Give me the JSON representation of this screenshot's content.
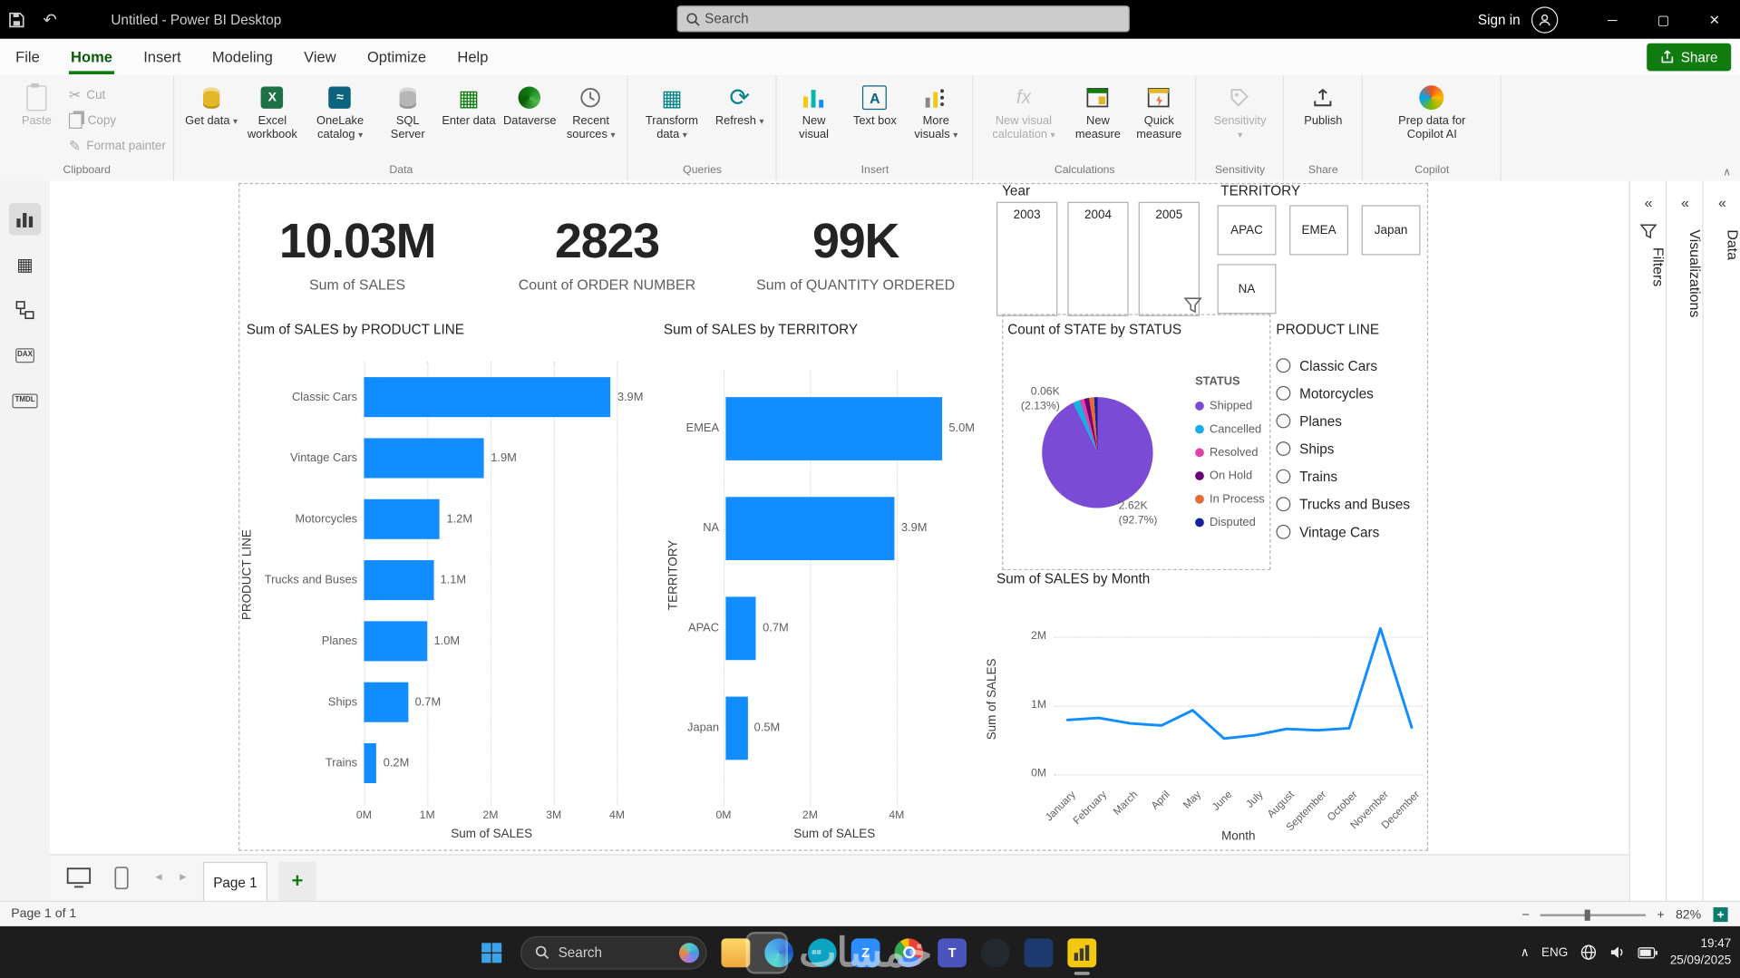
{
  "titlebar": {
    "title": "Untitled - Power BI Desktop",
    "search_placeholder": "Search",
    "sign_in_label": "Sign in"
  },
  "menu": {
    "items": [
      "File",
      "Home",
      "Insert",
      "Modeling",
      "View",
      "Optimize",
      "Help"
    ],
    "active": "Home",
    "share_label": "Share"
  },
  "ribbon": {
    "groups": [
      {
        "label": "Clipboard",
        "buttons": [
          {
            "label": "Paste"
          },
          {
            "label": "Cut"
          },
          {
            "label": "Copy"
          },
          {
            "label": "Format painter"
          }
        ]
      },
      {
        "label": "Data",
        "buttons": [
          {
            "label": "Get data"
          },
          {
            "label": "Excel workbook"
          },
          {
            "label": "OneLake catalog"
          },
          {
            "label": "SQL Server"
          },
          {
            "label": "Enter data"
          },
          {
            "label": "Dataverse"
          },
          {
            "label": "Recent sources"
          }
        ]
      },
      {
        "label": "Queries",
        "buttons": [
          {
            "label": "Transform data"
          },
          {
            "label": "Refresh"
          }
        ]
      },
      {
        "label": "Insert",
        "buttons": [
          {
            "label": "New visual"
          },
          {
            "label": "Text box"
          },
          {
            "label": "More visuals"
          }
        ]
      },
      {
        "label": "Calculations",
        "buttons": [
          {
            "label": "New visual calculation"
          },
          {
            "label": "New measure"
          },
          {
            "label": "Quick measure"
          }
        ]
      },
      {
        "label": "Sensitivity",
        "buttons": [
          {
            "label": "Sensitivity"
          }
        ]
      },
      {
        "label": "Share",
        "buttons": [
          {
            "label": "Publish"
          }
        ]
      },
      {
        "label": "Copilot",
        "buttons": [
          {
            "label": "Prep data for Copilot AI"
          }
        ]
      }
    ]
  },
  "left_rail": {
    "views": [
      "Report view",
      "Table view",
      "Model view",
      "DAX query view",
      "TMDL view"
    ]
  },
  "canvas": {
    "cards": [
      {
        "value": "10.03M",
        "label": "Sum of SALES"
      },
      {
        "value": "2823",
        "label": "Count of ORDER NUMBER"
      },
      {
        "value": "99K",
        "label": "Sum of QUANTITY ORDERED"
      }
    ],
    "year_slicer": {
      "title": "Year",
      "options": [
        "2003",
        "2004",
        "2005"
      ]
    },
    "territory_slicer": {
      "title": "TERRITORY",
      "options": [
        "APAC",
        "EMEA",
        "Japan",
        "NA"
      ]
    },
    "product_line_slicer": {
      "title": "PRODUCT LINE",
      "options": [
        "Classic Cars",
        "Motorcycles",
        "Planes",
        "Ships",
        "Trains",
        "Trucks and Buses",
        "Vintage Cars"
      ]
    }
  },
  "chart_data": [
    {
      "type": "bar",
      "orientation": "horizontal",
      "title": "Sum of SALES by PRODUCT LINE",
      "categories": [
        "Classic Cars",
        "Vintage Cars",
        "Motorcycles",
        "Trucks and Buses",
        "Planes",
        "Ships",
        "Trains"
      ],
      "values": [
        3.9,
        1.9,
        1.2,
        1.1,
        1.0,
        0.7,
        0.2
      ],
      "value_labels": [
        "3.9M",
        "1.9M",
        "1.2M",
        "1.1M",
        "1.0M",
        "0.7M",
        "0.2M"
      ],
      "x_ticks": [
        "0M",
        "1M",
        "2M",
        "3M",
        "4M"
      ],
      "xlim": [
        0,
        4.3
      ],
      "xlabel": "Sum of SALES",
      "ylabel": "PRODUCT LINE",
      "bar_color": "#118DFF"
    },
    {
      "type": "bar",
      "orientation": "horizontal",
      "title": "Sum of SALES by TERRITORY",
      "categories": [
        "EMEA",
        "NA",
        "APAC",
        "Japan"
      ],
      "values": [
        5.0,
        3.9,
        0.7,
        0.5
      ],
      "value_labels": [
        "5.0M",
        "3.9M",
        "0.7M",
        "0.5M"
      ],
      "x_ticks": [
        "0M",
        "2M",
        "4M"
      ],
      "xlim": [
        0,
        5.8
      ],
      "xlabel": "Sum of SALES",
      "ylabel": "TERRITORY",
      "bar_color": "#118DFF"
    },
    {
      "type": "pie",
      "title": "Count of STATE by STATUS",
      "legend_title": "STATUS",
      "slices": [
        {
          "label": "Shipped",
          "color": "#7C4BD6",
          "pct": 92.7,
          "value_label": "2.62K",
          "pct_label": "(92.7%)"
        },
        {
          "label": "Cancelled",
          "color": "#19AEE8",
          "pct": 2.13,
          "value_label": "0.06K",
          "pct_label": "(2.13%)"
        },
        {
          "label": "Resolved",
          "color": "#E044A7",
          "pct": 1.3
        },
        {
          "label": "On Hold",
          "color": "#6B007B",
          "pct": 1.4
        },
        {
          "label": "In Process",
          "color": "#E66C37",
          "pct": 1.5
        },
        {
          "label": "Disputed",
          "color": "#12239E",
          "pct": 0.97
        }
      ]
    },
    {
      "type": "line",
      "title": "Sum of SALES by Month",
      "x": [
        "January",
        "February",
        "March",
        "April",
        "May",
        "June",
        "July",
        "August",
        "September",
        "October",
        "November",
        "December"
      ],
      "values": [
        0.79,
        0.82,
        0.74,
        0.71,
        0.93,
        0.52,
        0.57,
        0.66,
        0.64,
        0.67,
        2.12,
        0.68
      ],
      "y_ticks": [
        "0M",
        "1M",
        "2M"
      ],
      "ylim": [
        0,
        2.2
      ],
      "xlabel": "Month",
      "ylabel": "Sum of SALES",
      "line_color": "#118DFF"
    }
  ],
  "right_panes": [
    {
      "label": "Filters"
    },
    {
      "label": "Visualizations"
    },
    {
      "label": "Data"
    }
  ],
  "page_bar": {
    "active_page": "Page 1",
    "add_page_label": "+"
  },
  "status_bar": {
    "page_info": "Page 1 of 1",
    "zoom_level": "82%"
  },
  "taskbar": {
    "search_placeholder": "Search",
    "apps": [
      "file-explorer",
      "edge",
      "onedrive",
      "zoom",
      "chrome",
      "teams",
      "github-desktop",
      "visual-studio",
      "power-bi"
    ],
    "tray": {
      "language": "ENG",
      "time": "19:47",
      "date": "25/09/2025"
    }
  },
  "watermark": {
    "text": "خمسات"
  },
  "icons": {
    "search": "magnifier",
    "undo": "↶",
    "save": "floppy",
    "refresh": "⟳",
    "filter": "funnel",
    "collapse": "«",
    "dropdown": "▾",
    "minimize": "─",
    "maximize": "▢",
    "close": "✕"
  },
  "colors": {
    "accent_green": "#107C10",
    "bar_blue": "#118DFF",
    "taskbar_bg": "#1d1d1d",
    "titlebar_bg": "#000000"
  }
}
